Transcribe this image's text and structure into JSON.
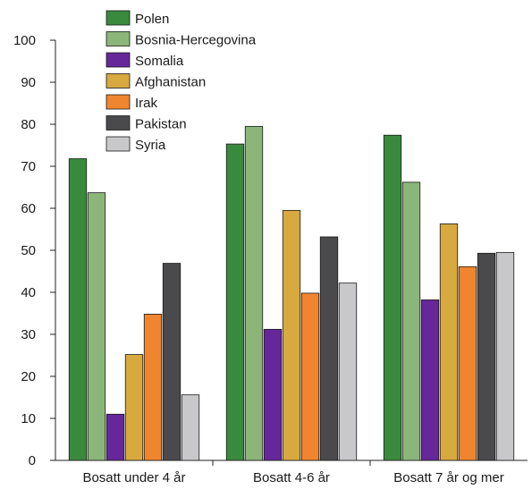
{
  "chart_data": {
    "type": "bar",
    "categories": [
      "Bosatt under 4 år",
      "Bosatt 4-6 år",
      "Bosatt 7 år og mer"
    ],
    "series": [
      {
        "name": "Polen",
        "color": "#3a8a3e",
        "values": [
          71.8,
          75.3,
          77.4
        ]
      },
      {
        "name": "Bosnia-Hercegovina",
        "color": "#8cb57a",
        "values": [
          63.7,
          79.5,
          66.2
        ]
      },
      {
        "name": "Somalia",
        "color": "#66279a",
        "values": [
          11.0,
          31.2,
          38.2
        ]
      },
      {
        "name": "Afghanistan",
        "color": "#d7a93f",
        "values": [
          25.2,
          59.5,
          56.3
        ]
      },
      {
        "name": "Irak",
        "color": "#f0852f",
        "values": [
          34.8,
          39.8,
          46.1
        ]
      },
      {
        "name": "Pakistan",
        "color": "#4a4a4c",
        "values": [
          46.9,
          53.2,
          49.3
        ]
      },
      {
        "name": "Syria",
        "color": "#c8c8ca",
        "values": [
          15.6,
          42.2,
          49.5
        ]
      }
    ],
    "ylim": [
      0,
      100
    ],
    "yticks": [
      0,
      10,
      20,
      30,
      40,
      50,
      60,
      70,
      80,
      90,
      100
    ],
    "legend_position": "top-left",
    "grid": false,
    "title": "",
    "xlabel": "",
    "ylabel": ""
  }
}
